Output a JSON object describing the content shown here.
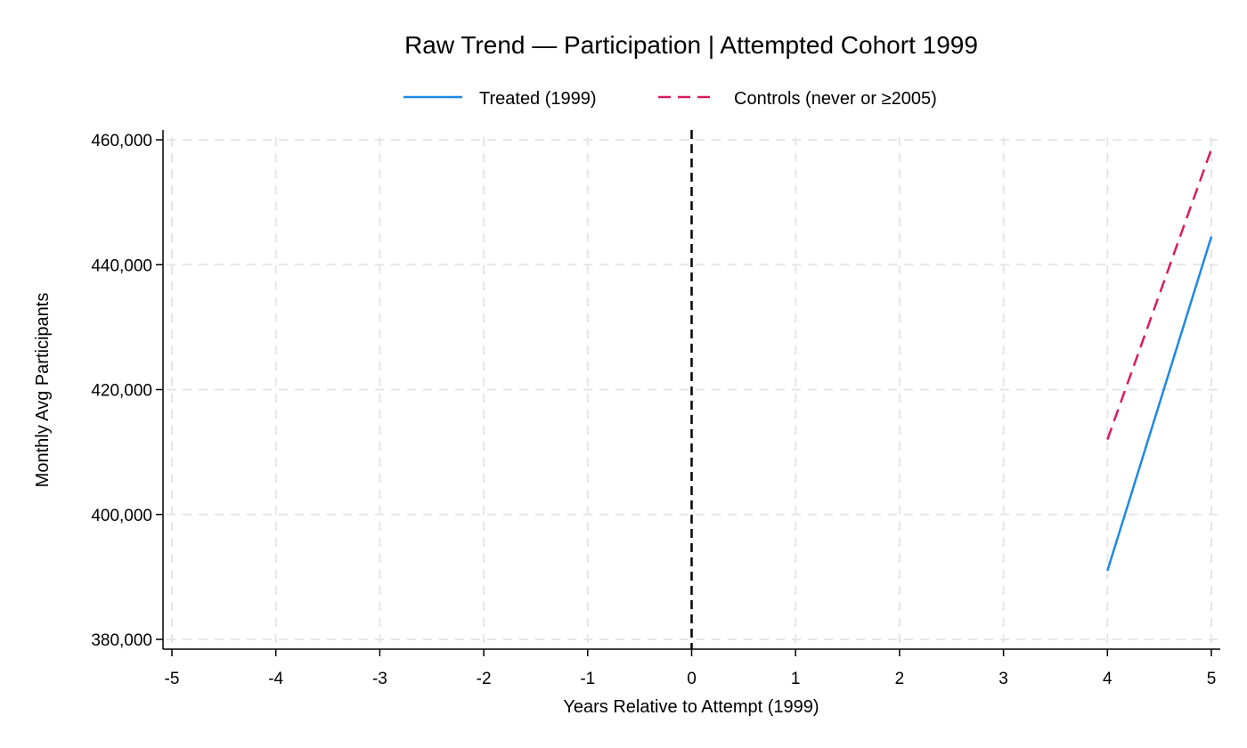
{
  "chart_data": {
    "type": "line",
    "title": "Raw Trend — Participation | Attempted Cohort 1999",
    "xlabel": "Years Relative to Attempt (1999)",
    "ylabel": "Monthly Avg Participants",
    "xlim": [
      -5,
      5
    ],
    "ylim": [
      380000,
      460000
    ],
    "xticks": [
      -5,
      -4,
      -3,
      -2,
      -1,
      0,
      1,
      2,
      3,
      4,
      5
    ],
    "xtick_labels": [
      "-5",
      "-4",
      "-3",
      "-2",
      "-1",
      "0",
      "1",
      "2",
      "3",
      "4",
      "5"
    ],
    "yticks": [
      380000,
      400000,
      420000,
      440000,
      460000
    ],
    "ytick_labels": [
      "380,000",
      "400,000",
      "420,000",
      "440,000",
      "460,000"
    ],
    "grid": true,
    "legend_position": "top-center",
    "reference_line_x": 0,
    "series": [
      {
        "name": "Treated (1999)",
        "color": "#1e88e5",
        "style": "solid",
        "x": [
          4,
          5
        ],
        "values": [
          391000,
          444500
        ]
      },
      {
        "name": "Controls (never or ≥2005)",
        "color": "#d81b60",
        "style": "dashed",
        "x": [
          4,
          5
        ],
        "values": [
          412000,
          458500
        ]
      }
    ]
  }
}
